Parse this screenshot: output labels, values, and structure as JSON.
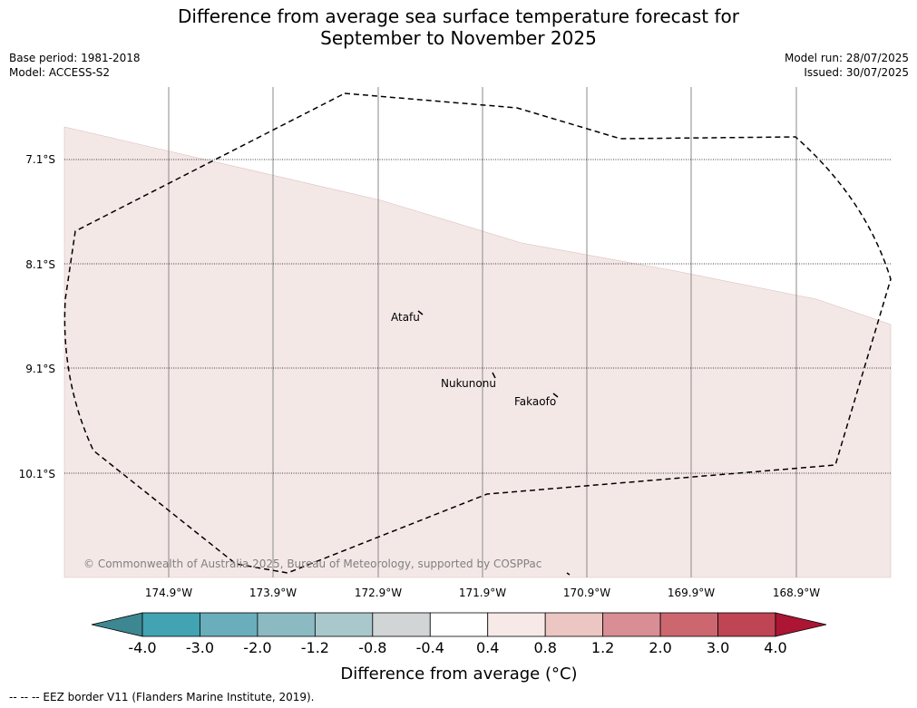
{
  "header": {
    "title_line1": "Difference from average sea surface temperature forecast for",
    "title_line2": "September to November 2025",
    "base_period": "Base period: 1981-2018",
    "model": "Model: ACCESS-S2",
    "model_run": "Model run: 28/07/2025",
    "issued": "Issued: 30/07/2025"
  },
  "map": {
    "copyright": "© Commonwealth of Australia 2025, Bureau of Meteorology, supported by COSPPac",
    "lat_labels": [
      "7.1°S",
      "8.1°S",
      "9.1°S",
      "10.1°S"
    ],
    "lon_labels": [
      "174.9°W",
      "173.9°W",
      "172.9°W",
      "171.9°W",
      "170.9°W",
      "169.9°W",
      "168.9°W"
    ],
    "places": [
      {
        "name": "Atafu"
      },
      {
        "name": "Nukunonu"
      },
      {
        "name": "Fakaofo"
      }
    ],
    "anomaly_fill_color": "#f4e8e7",
    "border_style": "dashed"
  },
  "colorbar": {
    "label": "Difference from average (°C)",
    "ticks": [
      "-4.0",
      "-3.0",
      "-2.0",
      "-1.2",
      "-0.8",
      "-0.4",
      "0.4",
      "0.8",
      "1.2",
      "2.0",
      "3.0",
      "4.0"
    ],
    "colors": [
      "#42a3b2",
      "#6aaebb",
      "#8cbac3",
      "#a9c8cc",
      "#d2d5d6",
      "#ffffff",
      "#f6e9e8",
      "#ebc6c3",
      "#d88e94",
      "#cc6770",
      "#bf4454"
    ],
    "extend_low_color": "#3d8793",
    "extend_high_color": "#ac1534"
  },
  "footer": {
    "legend": "--  --  -- EEZ border V11 (Flanders Marine Institute, 2019)."
  }
}
